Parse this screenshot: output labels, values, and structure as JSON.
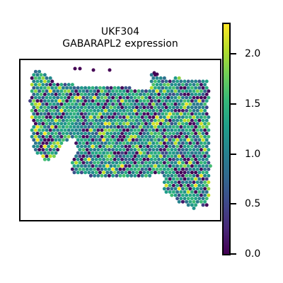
{
  "chart_data": {
    "type": "scatter",
    "title": "UKF304",
    "subtitle": "GABARAPL2 expression",
    "xlabel": "",
    "ylabel": "",
    "colorbar": {
      "colormap": "viridis",
      "range": [
        0.0,
        2.3
      ],
      "ticks": [
        "0.0",
        "0.5",
        "1.0",
        "1.5",
        "2.0"
      ],
      "tick_values": [
        0.0,
        0.5,
        1.0,
        1.5,
        2.0
      ],
      "colors": [
        "#440154",
        "#482878",
        "#3e4989",
        "#31688e",
        "#26828e",
        "#1f9e89",
        "#35b779",
        "#6ece58",
        "#b5de2b",
        "#fde725"
      ]
    },
    "grid": false,
    "legend": "colorbar-right",
    "point_style": "hexagonal spot grid",
    "value_distribution_note": "Spots mostly 0.8–1.6 (teal/green), many 0.0 (dark purple), some ~2.2 (yellow)"
  }
}
